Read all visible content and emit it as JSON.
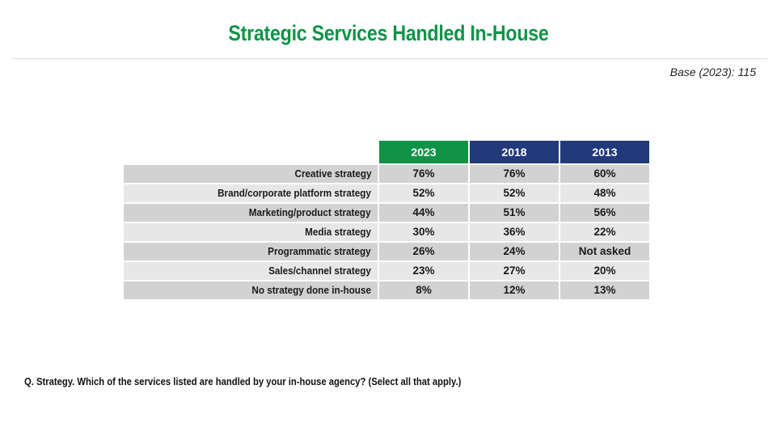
{
  "title": "Strategic Services Handled In-House",
  "base_note": "Base (2023): 115",
  "colors": {
    "title": "#0f9447",
    "col_2023": "#0f9447",
    "col_2018": "#22397a",
    "col_2013": "#22397a"
  },
  "table": {
    "columns": [
      "2023",
      "2018",
      "2013"
    ],
    "rows": [
      {
        "label": "Creative strategy",
        "values": [
          "76%",
          "76%",
          "60%"
        ]
      },
      {
        "label": "Brand/corporate platform strategy",
        "values": [
          "52%",
          "52%",
          "48%"
        ]
      },
      {
        "label": "Marketing/product strategy",
        "values": [
          "44%",
          "51%",
          "56%"
        ]
      },
      {
        "label": "Media strategy",
        "values": [
          "30%",
          "36%",
          "22%"
        ]
      },
      {
        "label": "Programmatic strategy",
        "values": [
          "26%",
          "24%",
          "Not asked"
        ]
      },
      {
        "label": "Sales/channel strategy",
        "values": [
          "23%",
          "27%",
          "20%"
        ]
      },
      {
        "label": "No strategy done in-house",
        "values": [
          "8%",
          "12%",
          "13%"
        ]
      }
    ]
  },
  "question": "Q. Strategy. Which of the services listed are handled by your in-house agency? (Select all that apply.)"
}
